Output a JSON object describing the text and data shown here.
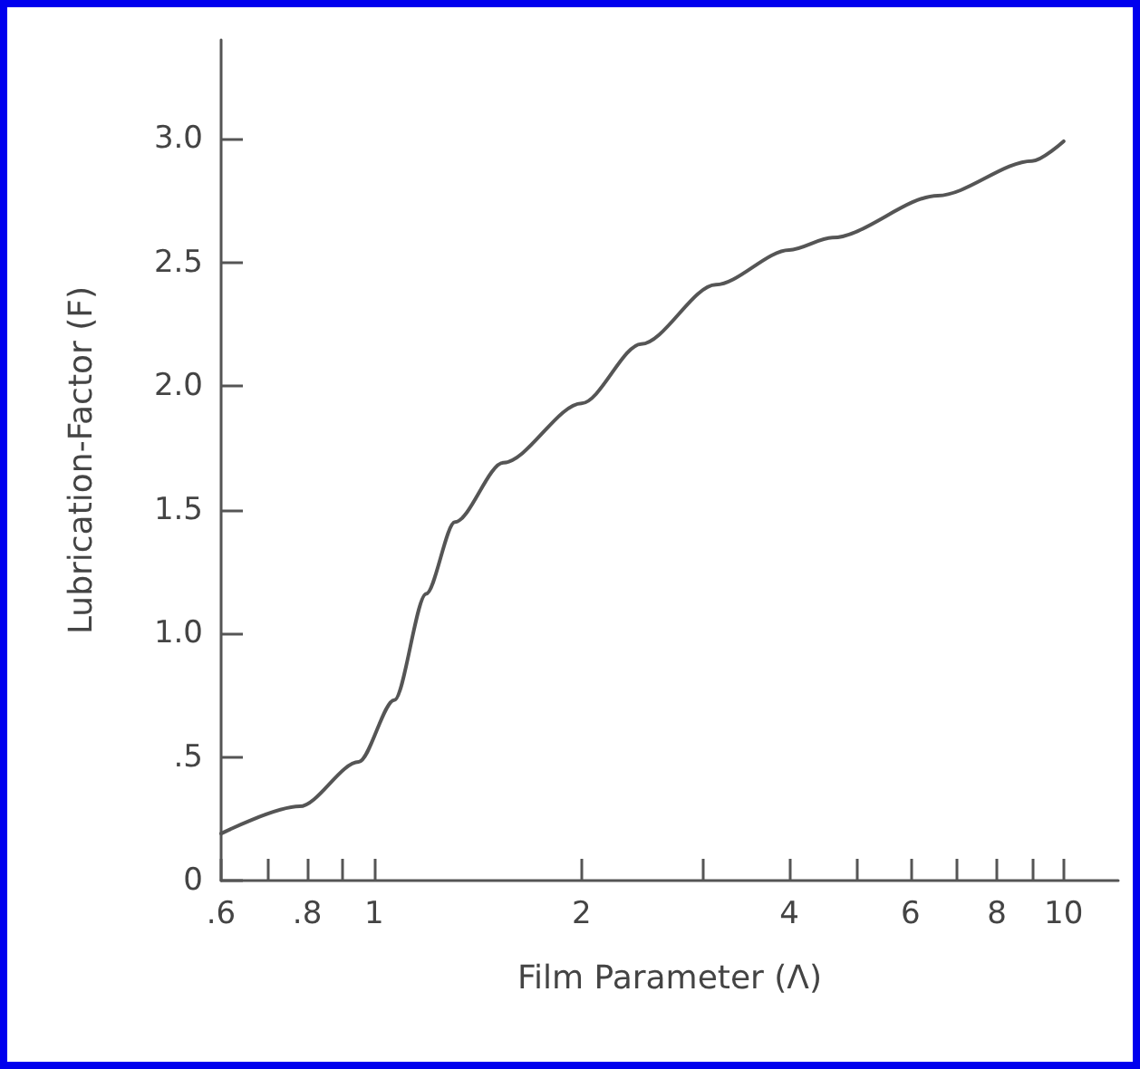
{
  "chart_data": {
    "type": "line",
    "xlabel": "Film Parameter (Λ)",
    "ylabel": "Lubrication-Factor (F)",
    "x": [
      0.6,
      0.78,
      0.95,
      1.07,
      1.19,
      1.31,
      1.54,
      2.0,
      2.44,
      3.13,
      4.0,
      4.62,
      6.57,
      9.0,
      10.0
    ],
    "series": [
      {
        "color": "#555555",
        "values": [
          0.19,
          0.3,
          0.48,
          0.73,
          1.16,
          1.45,
          1.69,
          1.93,
          2.17,
          2.41,
          2.55,
          2.6,
          2.77,
          2.91,
          2.99
        ]
      }
    ],
    "log": "x",
    "xlim": [
      0.6,
      12
    ],
    "ylim": [
      0,
      3.4
    ],
    "xticks": [
      {
        "value": 0.6,
        "label": ".6"
      },
      {
        "value": 0.7,
        "label": null
      },
      {
        "value": 0.8,
        "label": ".8"
      },
      {
        "value": 0.9,
        "label": null
      },
      1,
      2,
      {
        "value": 3,
        "label": null
      },
      4,
      {
        "value": 5,
        "label": null
      },
      6,
      {
        "value": 7,
        "label": null
      },
      8,
      {
        "value": 9,
        "label": null
      },
      10
    ],
    "yticks": [
      0,
      {
        "value": 0.5,
        "label": ".5"
      },
      {
        "value": 1,
        "label": "1.0"
      },
      1.5,
      {
        "value": 2,
        "label": "2.0"
      },
      2.5,
      {
        "value": 3,
        "label": "3.0"
      }
    ],
    "grid": false,
    "marker": "none",
    "line_style": "solid"
  }
}
